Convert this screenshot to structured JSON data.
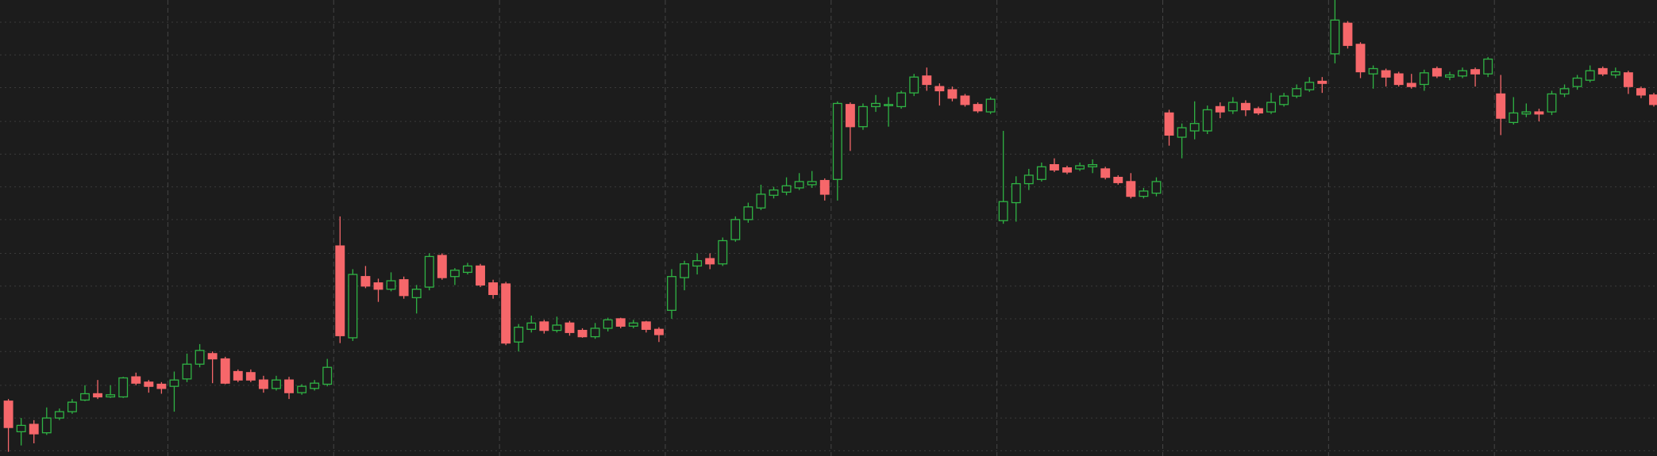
{
  "chart_data": {
    "type": "candlestick",
    "open": [
      52,
      23,
      30,
      22,
      36,
      42,
      53,
      59,
      56,
      56,
      75,
      70,
      68,
      66,
      73,
      87,
      97,
      92,
      80,
      79,
      72,
      64,
      72,
      60,
      64,
      68,
      199,
      112,
      170,
      164,
      158,
      167,
      150,
      160,
      190,
      170,
      174,
      180,
      164,
      163,
      108,
      120,
      127,
      119,
      126,
      119,
      113,
      121,
      130,
      123,
      127,
      120,
      138,
      169,
      180,
      187,
      182,
      205,
      224,
      235,
      247,
      250,
      254,
      257,
      261,
      262,
      333,
      312,
      331,
      332,
      331,
      344,
      360,
      350,
      347,
      341,
      333,
      326,
      223,
      240,
      258,
      262,
      276,
      273,
      272,
      274,
      272,
      264,
      260,
      246,
      249,
      325,
      302,
      308,
      308,
      331,
      327,
      334,
      329,
      326,
      333,
      341,
      347,
      355,
      381,
      410,
      390,
      362,
      365,
      362,
      353,
      352,
      367,
      359,
      360,
      366,
      362,
      343,
      316,
      324,
      326,
      326,
      343,
      350,
      356,
      367,
      361,
      363,
      348,
      342
    ],
    "high": [
      54,
      36,
      34,
      46,
      45,
      54,
      67,
      72,
      67,
      75,
      79,
      72,
      70,
      80,
      97,
      106,
      99,
      94,
      82,
      82,
      76,
      76,
      75,
      68,
      72,
      92,
      227,
      177,
      180,
      168,
      174,
      170,
      162,
      192,
      192,
      178,
      183,
      182,
      167,
      165,
      125,
      133,
      129,
      132,
      128,
      121,
      126,
      131,
      131,
      129,
      128,
      122,
      177,
      185,
      192,
      192,
      207,
      227,
      240,
      257,
      255,
      264,
      268,
      270,
      263,
      336,
      335,
      334,
      342,
      340,
      346,
      362,
      368,
      353,
      350,
      343,
      335,
      340,
      308,
      265,
      272,
      278,
      282,
      275,
      278,
      281,
      274,
      266,
      268,
      254,
      264,
      328,
      315,
      336,
      332,
      335,
      340,
      337,
      331,
      344,
      344,
      352,
      359,
      359,
      432,
      412,
      392,
      370,
      367,
      364,
      362,
      366,
      369,
      364,
      368,
      368,
      378,
      361,
      340,
      334,
      329,
      346,
      352,
      361,
      370,
      369,
      368,
      365,
      350,
      344
    ],
    "low": [
      4,
      10,
      12,
      20,
      34,
      40,
      52,
      54,
      55,
      55,
      67,
      60,
      59,
      42,
      70,
      84,
      69,
      68,
      70,
      70,
      60,
      62,
      54,
      58,
      62,
      66,
      107,
      109,
      159,
      146,
      156,
      149,
      135,
      157,
      167,
      162,
      172,
      160,
      149,
      105,
      99,
      117,
      116,
      117,
      114,
      112,
      111,
      118,
      121,
      121,
      117,
      108,
      130,
      157,
      172,
      177,
      180,
      203,
      221,
      233,
      244,
      247,
      252,
      254,
      242,
      242,
      289,
      309,
      326,
      312,
      329,
      341,
      346,
      332,
      336,
      331,
      325,
      324,
      220,
      222,
      252,
      260,
      269,
      267,
      270,
      268,
      262,
      257,
      244,
      244,
      246,
      294,
      282,
      300,
      305,
      320,
      324,
      322,
      323,
      324,
      331,
      339,
      345,
      344,
      372,
      386,
      358,
      348,
      350,
      350,
      348,
      346,
      358,
      356,
      358,
      350,
      359,
      304,
      314,
      321,
      317,
      323,
      340,
      347,
      354,
      360,
      358,
      343,
      339,
      331
    ],
    "close": [
      27,
      29,
      21,
      36,
      42,
      51,
      59,
      56,
      58,
      74,
      69,
      66,
      64,
      72,
      87,
      100,
      92,
      69,
      72,
      72,
      64,
      72,
      60,
      66,
      69,
      84,
      114,
      172,
      161,
      158,
      166,
      152,
      158,
      189,
      169,
      176,
      180,
      162,
      153,
      107,
      122,
      126,
      119,
      124,
      117,
      113,
      121,
      129,
      123,
      126,
      120,
      115,
      170,
      182,
      185,
      182,
      204,
      224,
      236,
      248,
      252,
      256,
      260,
      260,
      248,
      334,
      312,
      331,
      334,
      333,
      344,
      359,
      352,
      346,
      339,
      333,
      327,
      338,
      241,
      258,
      266,
      274,
      271,
      269,
      275,
      276,
      264,
      259,
      246,
      251,
      260,
      304,
      311,
      315,
      328,
      326,
      335,
      328,
      325,
      335,
      341,
      348,
      354,
      353,
      413,
      389,
      364,
      367,
      359,
      352,
      350,
      363,
      360,
      361,
      365,
      362,
      376,
      320,
      325,
      326,
      324,
      343,
      348,
      358,
      365,
      362,
      364,
      350,
      342,
      333
    ],
    "ylim": [
      0,
      432
    ],
    "yticks": [
      5,
      36,
      67,
      99,
      130,
      161,
      192,
      224,
      255,
      286,
      317,
      349,
      380,
      411
    ],
    "grid": true,
    "up_color": "#2fb344",
    "down_color": "#f6676a"
  }
}
